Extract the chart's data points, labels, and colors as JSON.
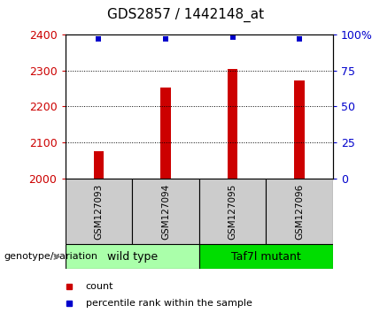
{
  "title": "GDS2857 / 1442148_at",
  "samples": [
    "GSM127093",
    "GSM127094",
    "GSM127095",
    "GSM127096"
  ],
  "counts": [
    2075,
    2252,
    2305,
    2272
  ],
  "percentiles": [
    97,
    97,
    98,
    97
  ],
  "ylim_left": [
    2000,
    2400
  ],
  "ylim_right": [
    0,
    100
  ],
  "yticks_left": [
    2000,
    2100,
    2200,
    2300,
    2400
  ],
  "yticks_right": [
    0,
    25,
    50,
    75,
    100
  ],
  "ytick_labels_right": [
    "0",
    "25",
    "50",
    "75",
    "100%"
  ],
  "bar_color": "#cc0000",
  "dot_color": "#0000cc",
  "bar_width": 0.15,
  "groups": [
    {
      "label": "wild type",
      "samples": [
        0,
        1
      ],
      "color": "#aaffaa"
    },
    {
      "label": "Taf7l mutant",
      "samples": [
        2,
        3
      ],
      "color": "#00dd00"
    }
  ],
  "group_label_prefix": "genotype/variation",
  "sample_box_color": "#cccccc",
  "legend_count_label": "count",
  "legend_percentile_label": "percentile rank within the sample",
  "title_fontsize": 11,
  "tick_fontsize": 9,
  "sample_fontsize": 7.5,
  "group_fontsize": 9,
  "legend_fontsize": 8
}
